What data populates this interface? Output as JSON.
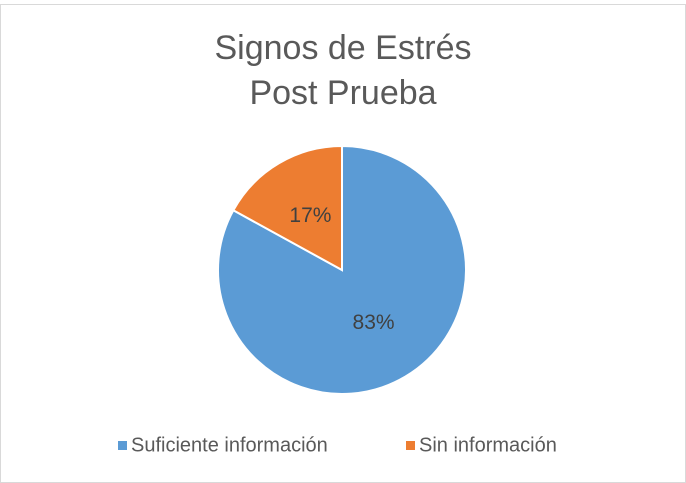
{
  "chart_data": {
    "type": "pie",
    "title": [
      "Signos de Estrés",
      "Post Prueba"
    ],
    "categories": [
      "Suficiente información",
      "Sin información"
    ],
    "values": [
      83,
      17
    ],
    "value_labels": [
      "83%",
      "17%"
    ],
    "colors": [
      "#5b9bd5",
      "#ed7d31"
    ],
    "legend": "bottom"
  }
}
